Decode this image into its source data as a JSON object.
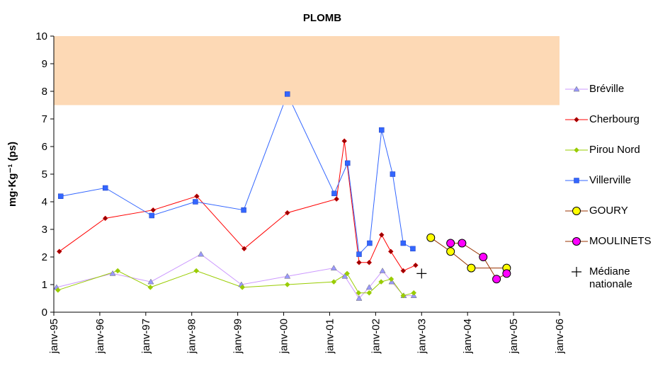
{
  "chart_data": {
    "type": "line",
    "title": "PLOMB",
    "y_label": "mg·Kg⁻¹ (ps)",
    "xlim": [
      1995,
      2006
    ],
    "xticks": [
      {
        "value": 1995,
        "label": "janv-95"
      },
      {
        "value": 1996,
        "label": "janv-96"
      },
      {
        "value": 1997,
        "label": "janv-97"
      },
      {
        "value": 1998,
        "label": "janv-98"
      },
      {
        "value": 1999,
        "label": "janv-99"
      },
      {
        "value": 2000,
        "label": "janv-00"
      },
      {
        "value": 2001,
        "label": "janv-01"
      },
      {
        "value": 2002,
        "label": "janv-02"
      },
      {
        "value": 2003,
        "label": "janv-03"
      },
      {
        "value": 2004,
        "label": "janv-04"
      },
      {
        "value": 2005,
        "label": "janv-05"
      },
      {
        "value": 2006,
        "label": "janv-06"
      }
    ],
    "ylim": [
      0,
      10
    ],
    "yticks": [
      0,
      1,
      2,
      3,
      4,
      5,
      6,
      7,
      8,
      9,
      10
    ],
    "band": {
      "from": 7.5,
      "to": 10,
      "color": "#fdd9b5"
    },
    "series": [
      {
        "name": "Bréville",
        "color": "#cc99ff",
        "marker": "triangle",
        "marker_fill": "#9999ff",
        "x": [
          1995.06,
          1996.28,
          1997.11,
          1998.2,
          1999.08,
          2000.08,
          2001.09,
          2001.33,
          2001.64,
          2001.86,
          2002.15,
          2002.35,
          2002.61,
          2002.83
        ],
        "values": [
          0.9,
          1.4,
          1.1,
          2.1,
          1.0,
          1.3,
          1.6,
          1.3,
          0.5,
          0.9,
          1.5,
          1.1,
          0.6,
          0.6
        ]
      },
      {
        "name": "Cherbourg",
        "color": "#ff0000",
        "marker": "diamond",
        "marker_fill": "#990000",
        "x": [
          1995.12,
          1996.12,
          1997.16,
          1998.11,
          1999.14,
          2000.08,
          2001.15,
          2001.32,
          2001.64,
          2001.86,
          2002.13,
          2002.33,
          2002.6,
          2002.87
        ],
        "values": [
          2.2,
          3.4,
          3.7,
          4.2,
          2.3,
          3.6,
          4.1,
          6.2,
          1.8,
          1.8,
          2.8,
          2.2,
          1.5,
          1.7
        ]
      },
      {
        "name": "Pirou Nord",
        "color": "#99cc00",
        "marker": "diamond",
        "marker_fill": "#99cc00",
        "x": [
          1995.09,
          1996.39,
          1997.1,
          1998.1,
          1999.1,
          2000.08,
          2001.09,
          2001.38,
          2001.63,
          2001.86,
          2002.12,
          2002.34,
          2002.6,
          2002.83
        ],
        "values": [
          0.8,
          1.5,
          0.9,
          1.5,
          0.9,
          1.0,
          1.1,
          1.4,
          0.7,
          0.7,
          1.1,
          1.2,
          0.6,
          0.7
        ]
      },
      {
        "name": "Villerville",
        "color": "#3366ff",
        "marker": "square",
        "marker_fill": "#3366ff",
        "x": [
          1995.15,
          1996.12,
          1997.13,
          1998.08,
          1999.13,
          2000.08,
          2001.1,
          2001.39,
          2001.64,
          2001.87,
          2002.13,
          2002.37,
          2002.6,
          2002.81
        ],
        "values": [
          4.2,
          4.5,
          3.5,
          4.0,
          3.7,
          7.9,
          4.3,
          5.4,
          2.1,
          2.5,
          6.6,
          5.0,
          2.5,
          2.3
        ]
      },
      {
        "name": "GOURY",
        "color": "#993300",
        "marker": "circle",
        "marker_fill": "#ffff00",
        "x": [
          2003.2,
          2003.63,
          2004.08,
          2004.85
        ],
        "values": [
          2.7,
          2.2,
          1.6,
          1.6
        ]
      },
      {
        "name": "MOULINETS",
        "color": "#993300",
        "marker": "circle",
        "marker_fill": "#ff00ff",
        "x": [
          2003.63,
          2003.88,
          2004.34,
          2004.63,
          2004.85
        ],
        "values": [
          2.5,
          2.5,
          2.0,
          1.2,
          1.4
        ]
      },
      {
        "name": "Médiane nationale",
        "color": "#000000",
        "marker": "plus",
        "marker_fill": "#000000",
        "line": false,
        "x": [
          2003.0
        ],
        "values": [
          1.4
        ]
      }
    ]
  }
}
